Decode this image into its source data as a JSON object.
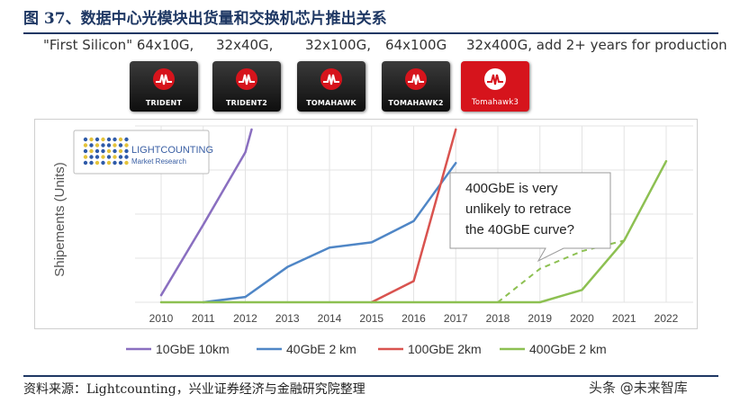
{
  "figure": {
    "title": "图 37、数据中心光模块出货量和交换机芯片推出关系",
    "source": "资料来源：Lightcounting，兴业证券经济与金融研究院整理",
    "watermark": "头条 @未来智库"
  },
  "generations": [
    {
      "label": "\"First Silicon\" 64x10G,",
      "chip": "TRIDENT"
    },
    {
      "label": "32x40G,",
      "chip": "TRIDENT2"
    },
    {
      "label": "32x100G,",
      "chip": "TOMAHAWK"
    },
    {
      "label": "64x100G",
      "chip": "TOMAHAWK2"
    },
    {
      "label": "32x400G,  add 2+ years for production",
      "chip": "Tomahawk3"
    }
  ],
  "colors": {
    "title": "#1f3864",
    "chip_logo": "#d6141c",
    "grid": "#e3e3e3"
  },
  "chart_data": {
    "type": "line",
    "ylabel": "Shipements (Units)",
    "x": [
      2010,
      2011,
      2012,
      2013,
      2014,
      2015,
      2016,
      2017,
      2018,
      2019,
      2020,
      2021,
      2022
    ],
    "xlim": [
      2010,
      2022
    ],
    "ylim": [
      0,
      100
    ],
    "grid": true,
    "legend_position": "bottom",
    "logo": {
      "line1": "LIGHTCOUNTING",
      "line2": "Market Research"
    },
    "series": [
      {
        "name": "10GbE 10km",
        "color": "#8a6fc0",
        "x": [
          2010,
          2011,
          2012,
          2012.15
        ],
        "y": [
          4,
          44,
          85,
          98
        ]
      },
      {
        "name": "40GbE 2 km",
        "color": "#4f86c6",
        "x": [
          2011,
          2012,
          2013,
          2014,
          2015,
          2016,
          2017
        ],
        "y": [
          0,
          3,
          20,
          31,
          34,
          46,
          79
        ]
      },
      {
        "name": "100GbE 2km",
        "color": "#d9534f",
        "x": [
          2015,
          2016,
          2017
        ],
        "y": [
          0,
          12,
          98
        ]
      },
      {
        "name": "400GbE 2 km",
        "color": "#8dc052",
        "x": [
          2010,
          2019,
          2020,
          2021,
          2022
        ],
        "y": [
          0,
          0,
          7,
          35,
          80
        ]
      }
    ],
    "projection": {
      "color": "#8dc052",
      "x": [
        2018,
        2019,
        2020,
        2021
      ],
      "y": [
        0,
        19,
        29,
        35
      ]
    },
    "annotation": {
      "text_lines": [
        "400GbE is very",
        "unlikely to retrace",
        "the 40GbE curve?"
      ]
    }
  }
}
